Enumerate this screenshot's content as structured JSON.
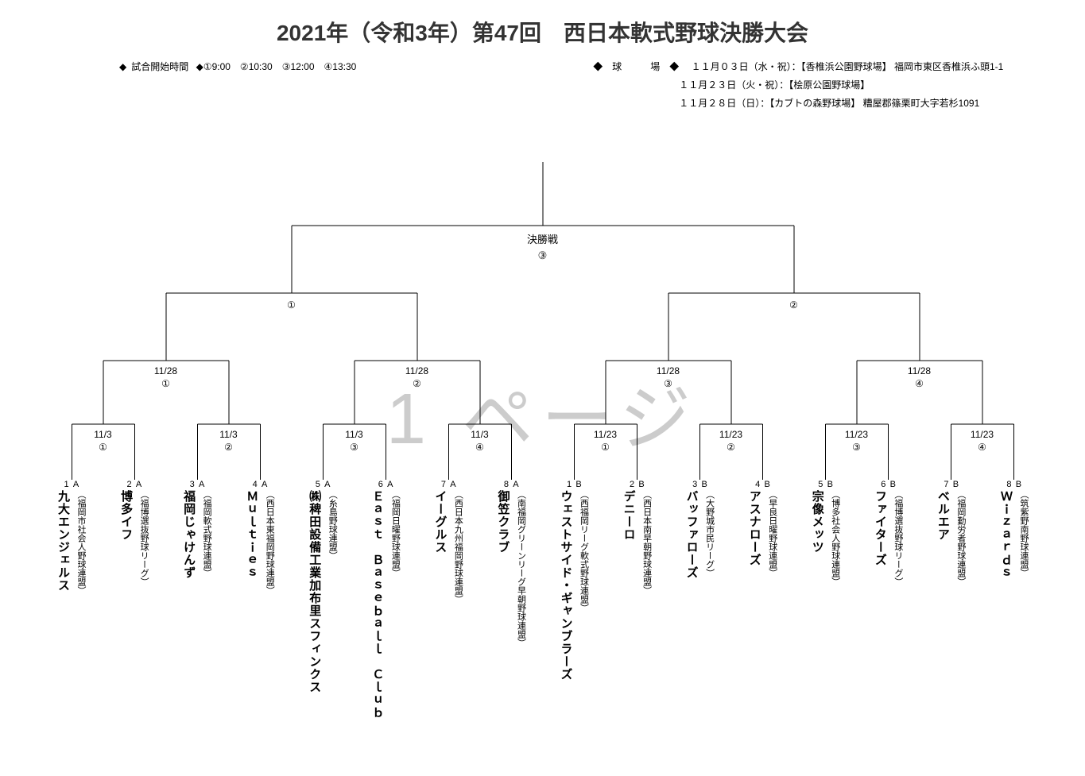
{
  "title": "2021年（令和3年）第47回　西日本軟式野球決勝大会",
  "time_label": "試合開始時間",
  "times": "◆①9:00　②10:30　③12:00　④13:30",
  "venue_label": "◆　球　　　場　◆",
  "venues": [
    "１１月０３日（水・祝）：【香椎浜公園野球場】 福岡市東区香椎浜ふ頭1-1",
    "１１月２３日（火・祝）：【桧原公園野球場】",
    "１１月２８日（日）：【カブトの森野球場】 糟屋郡篠栗町大字若杉1091"
  ],
  "watermark": "1 ページ",
  "final": {
    "label": "決勝戦",
    "time": "③"
  },
  "semis": [
    {
      "time": "①"
    },
    {
      "time": "②"
    }
  ],
  "qf": [
    {
      "date": "11/28",
      "time": "①"
    },
    {
      "date": "11/28",
      "time": "②"
    },
    {
      "date": "11/28",
      "time": "③"
    },
    {
      "date": "11/28",
      "time": "④"
    }
  ],
  "r1": [
    {
      "date": "11/3",
      "time": "①"
    },
    {
      "date": "11/3",
      "time": "②"
    },
    {
      "date": "11/3",
      "time": "③"
    },
    {
      "date": "11/3",
      "time": "④"
    },
    {
      "date": "11/23",
      "time": "①"
    },
    {
      "date": "11/23",
      "time": "②"
    },
    {
      "date": "11/23",
      "time": "③"
    },
    {
      "date": "11/23",
      "time": "④"
    }
  ],
  "teams": [
    {
      "id": "A1",
      "name": "九大エンジェルス",
      "league": "（福岡市社会人野球連盟）"
    },
    {
      "id": "A2",
      "name": "博多イフ",
      "league": "（福博選抜野球リーグ）"
    },
    {
      "id": "A3",
      "name": "福岡じゃけんず",
      "league": "（福岡軟式野球連盟）"
    },
    {
      "id": "A4",
      "name": "Ｍｕｌｔｉｅｓ",
      "league": "（西日本東福岡野球連盟）"
    },
    {
      "id": "A5",
      "name": "㈱稗田設備工業加布里スフィンクス",
      "league": "（糸島野球連盟）"
    },
    {
      "id": "A6",
      "name": "Ｅａｓｔ　Ｂａｓｅｂａｌｌ　Ｃｌｕｂ",
      "league": "（福岡日曜野球連盟）"
    },
    {
      "id": "A7",
      "name": "イーグルス",
      "league": "（西日本九州福岡野球連盟）"
    },
    {
      "id": "A8",
      "name": "御笠クラブ",
      "league": "（南福岡グリーンリーグ早朝野球連盟）"
    },
    {
      "id": "B1",
      "name": "ウェストサイド・ギャンブラーズ",
      "league": "（西福岡リーグ軟式野球連盟）"
    },
    {
      "id": "B2",
      "name": "デニーロ",
      "league": "（西日本南早朝野球連盟）"
    },
    {
      "id": "B3",
      "name": "バッファローズ",
      "league": "（大野城市民リーグ）"
    },
    {
      "id": "B4",
      "name": "アスナローズ",
      "league": "（早良日曜野球連盟）"
    },
    {
      "id": "B5",
      "name": "宗像メッツ",
      "league": "（博多社会人野球連盟）"
    },
    {
      "id": "B6",
      "name": "ファイターズ",
      "league": "（福博選抜野球リーグ）"
    },
    {
      "id": "B7",
      "name": "ベルエア",
      "league": "（福岡勤労者野球連盟）"
    },
    {
      "id": "B8",
      "name": "Ｗｉｚａｒｄｓ",
      "league": "（筑紫野南野球連盟）"
    }
  ],
  "colors": {
    "line": "#000000",
    "bg": "#ffffff",
    "watermark": "#cccccc"
  }
}
